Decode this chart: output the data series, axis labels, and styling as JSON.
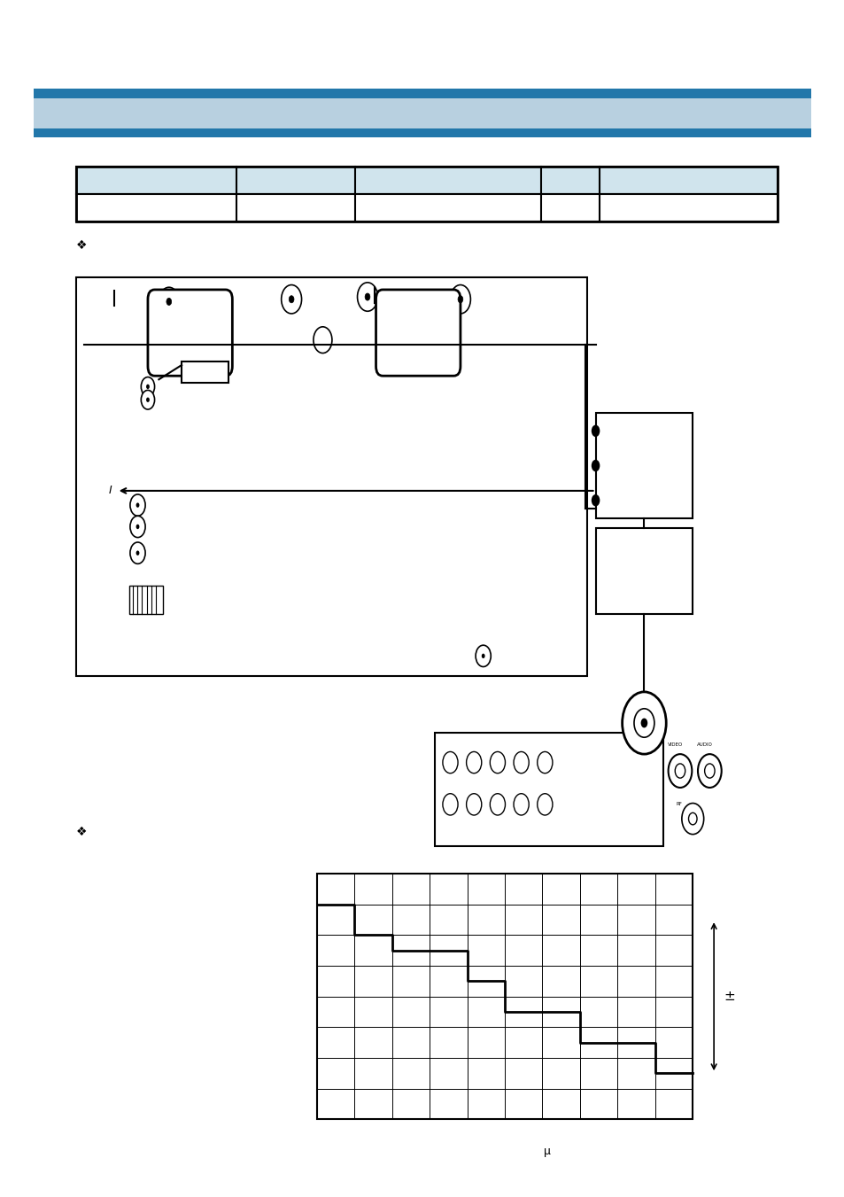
{
  "bg_color": "#ffffff",
  "header_stripe_color": "#2277aa",
  "header_stripe_light": "#b8d0e0",
  "table_header_bg": "#d0e4ed",
  "table_border": "#000000",
  "diagram_border": "#000000",
  "page_width": 9.54,
  "page_height": 13.51,
  "bullet_symbol": "❖",
  "col_props": [
    0.19,
    0.14,
    0.22,
    0.07,
    0.21
  ]
}
